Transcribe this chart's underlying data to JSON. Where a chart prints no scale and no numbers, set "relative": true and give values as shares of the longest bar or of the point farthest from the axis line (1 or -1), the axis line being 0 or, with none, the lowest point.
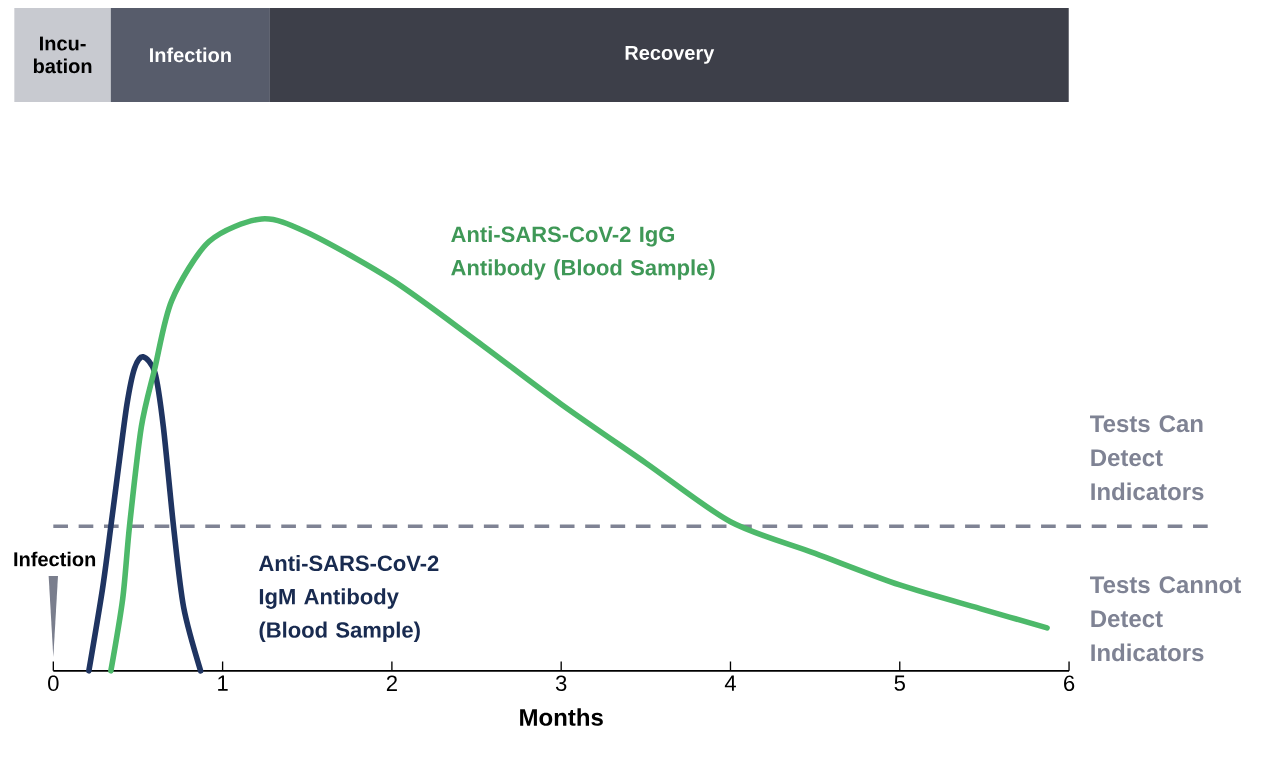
{
  "chart_data": [
    {
      "type": "bar",
      "orientation": "horizontal",
      "stacked": true,
      "relative": true,
      "categories": [
        null
      ],
      "series": [
        {
          "name": "Incu-bation",
          "color": "#c8cad0",
          "values": [
            0.0915
          ]
        },
        {
          "name": "Infection",
          "color": "#575c6b",
          "values": [
            0.1509
          ]
        },
        {
          "name": "Recovery",
          "color": "#3d3f49",
          "values": [
            0.7576
          ]
        }
      ]
    },
    {
      "type": "line",
      "relative": true,
      "xlim": [
        0,
        6
      ],
      "xticks": [
        0,
        1,
        2,
        3,
        4,
        5,
        6
      ],
      "xlabel": "Months",
      "tick_labels": "x",
      "line_style": "solid",
      "series": [
        {
          "name": "Anti-SARS-CoV-2 IgM Antibody (Blood Sample)",
          "color": "#1f3461",
          "x": [
            0.21,
            0.29,
            0.34,
            0.385,
            0.435,
            0.48,
            0.53,
            0.6,
            0.65,
            0.71,
            0.77,
            0.87
          ],
          "values": [
            0,
            0.18,
            0.32,
            0.45,
            0.59,
            0.67,
            0.695,
            0.66,
            0.54,
            0.32,
            0.14,
            0
          ]
        },
        {
          "name": "Anti-SARS-CoV-2 IgG Antibody (Blood Sample)",
          "color": "#4db96a",
          "x": [
            0.34,
            0.41,
            0.45,
            0.52,
            0.6,
            0.7,
            0.92,
            1.23,
            1.5,
            2,
            2.5,
            3,
            3.5,
            4,
            4.5,
            5,
            5.5,
            5.87
          ],
          "values": [
            0,
            0.16,
            0.32,
            0.54,
            0.67,
            0.82,
            0.95,
            1,
            0.97,
            0.865,
            0.73,
            0.59,
            0.46,
            0.33,
            0.26,
            0.19,
            0.135,
            0.095
          ]
        }
      ],
      "ref_lines": [
        {
          "axis": "y",
          "value": 0.32,
          "label": "Tests Can Detect Indicators",
          "color": "#7f8394",
          "line_style": "dashed"
        }
      ],
      "annotations": [
        "Infection",
        "Tests Cannot Detect Indicators"
      ]
    }
  ]
}
